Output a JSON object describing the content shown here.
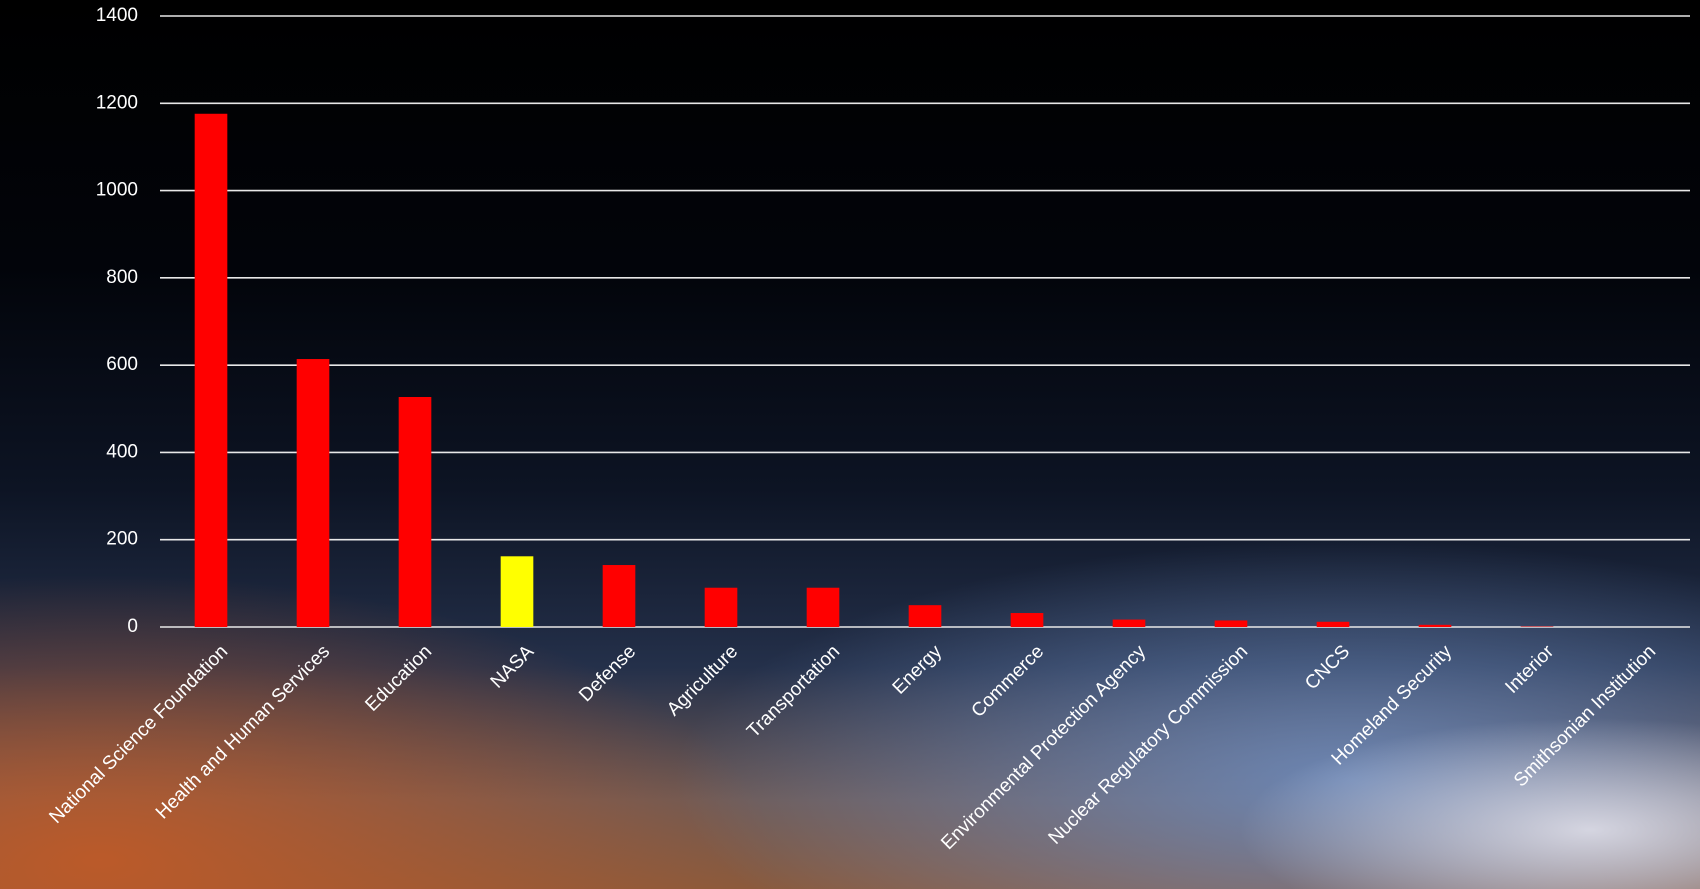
{
  "chart_data": {
    "type": "bar",
    "categories": [
      "National Science Foundation",
      "Health and Human Services",
      "Education",
      "NASA",
      "Defense",
      "Agriculture",
      "Transportation",
      "Energy",
      "Commerce",
      "Environmental Protection Agency",
      "Nuclear Regulatory Commission",
      "CNCS",
      "Homeland Security",
      "Interior",
      "Smithsonian Institution"
    ],
    "values": [
      1176,
      614,
      527,
      162,
      142,
      90,
      90,
      50,
      32,
      17,
      15,
      12,
      5,
      1,
      0
    ],
    "colors": [
      "#ff0000",
      "#ff0000",
      "#ff0000",
      "#ffff00",
      "#ff0000",
      "#ff0000",
      "#ff0000",
      "#ff0000",
      "#ff0000",
      "#ff0000",
      "#ff0000",
      "#ff0000",
      "#ff0000",
      "#ff0000",
      "#ff0000"
    ],
    "ylim": [
      0,
      1400
    ],
    "yticks": [
      0,
      200,
      400,
      600,
      800,
      1000,
      1200,
      1400
    ],
    "grid": true
  }
}
